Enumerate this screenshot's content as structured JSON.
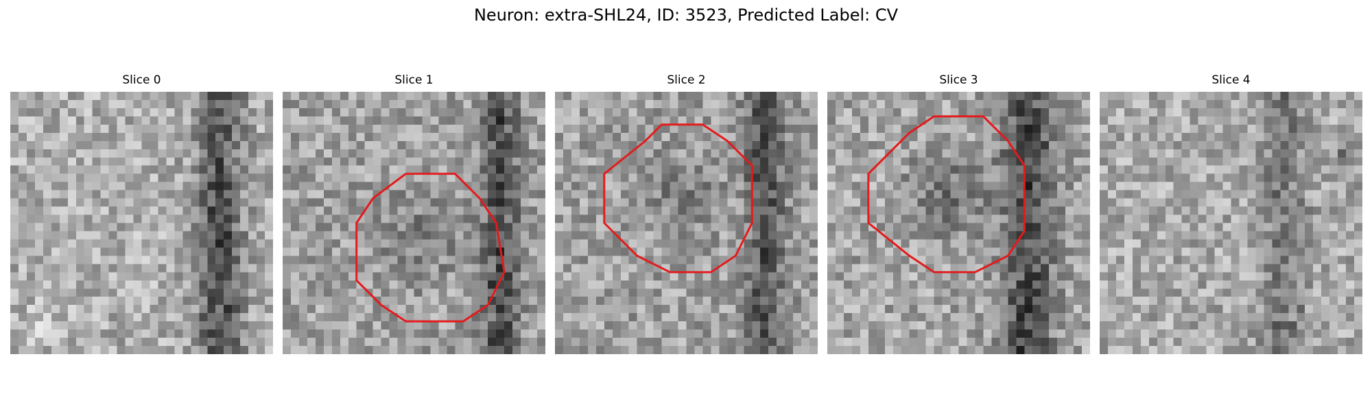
{
  "figure": {
    "title": "Neuron: extra-SHL24, ID: 3523, Predicted Label: CV",
    "contour_color": "#e41a1c"
  },
  "slices": [
    {
      "title": "Slice 0",
      "has_contour": false
    },
    {
      "title": "Slice 1",
      "has_contour": true
    },
    {
      "title": "Slice 2",
      "has_contour": true
    },
    {
      "title": "Slice 3",
      "has_contour": true
    },
    {
      "title": "Slice 4",
      "has_contour": false
    }
  ]
}
